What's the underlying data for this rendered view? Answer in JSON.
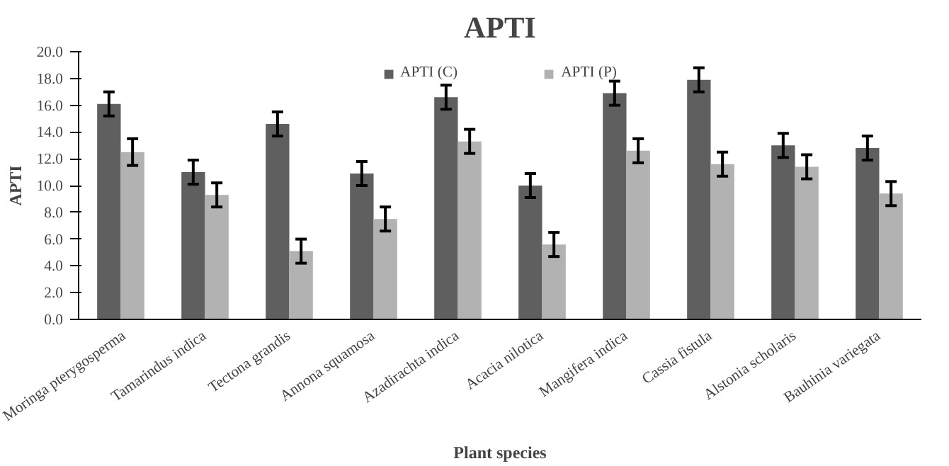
{
  "chart_data": {
    "type": "bar",
    "title": "APTI",
    "xlabel": "Plant species",
    "ylabel": "APTI",
    "categories": [
      "Moringa pterygosperma",
      "Tamarindus indica",
      "Tectona grandis",
      "Annona squamosa",
      "Azadirachta indica",
      "Acacia nilotica",
      "Mangifera indica",
      "Cassia fistula",
      "Alstonia scholaris",
      "Bauhinia variegata"
    ],
    "series": [
      {
        "name": "APTI (C)",
        "color": "#5f5f5f",
        "values": [
          16.1,
          11.0,
          14.6,
          10.9,
          16.6,
          10.0,
          16.9,
          17.9,
          13.0,
          12.8
        ],
        "errors": [
          0.9,
          0.9,
          0.9,
          0.9,
          0.9,
          0.9,
          0.9,
          0.9,
          0.9,
          0.9
        ]
      },
      {
        "name": "APTI (P)",
        "color": "#b2b2b2",
        "values": [
          12.5,
          9.3,
          5.1,
          7.5,
          13.3,
          5.6,
          12.6,
          11.6,
          11.4,
          9.4
        ],
        "errors": [
          1.0,
          0.9,
          0.9,
          0.9,
          0.9,
          0.9,
          0.9,
          0.9,
          0.9,
          0.9
        ]
      }
    ],
    "ylim": [
      0,
      20
    ],
    "yticks": [
      {
        "value": 0,
        "label": "0.0"
      },
      {
        "value": 2,
        "label": "2.0"
      },
      {
        "value": 4,
        "label": "4.0"
      },
      {
        "value": 6,
        "label": "6.0"
      },
      {
        "value": 8,
        "label": "8.0"
      },
      {
        "value": 10,
        "label": "10.0"
      },
      {
        "value": 12,
        "label": "12.0"
      },
      {
        "value": 14,
        "label": "14.0"
      },
      {
        "value": 16,
        "label": "16.0"
      },
      {
        "value": 18,
        "label": "18.0"
      },
      {
        "value": 20,
        "label": "20.0"
      }
    ],
    "grid": false,
    "legend": "top"
  }
}
